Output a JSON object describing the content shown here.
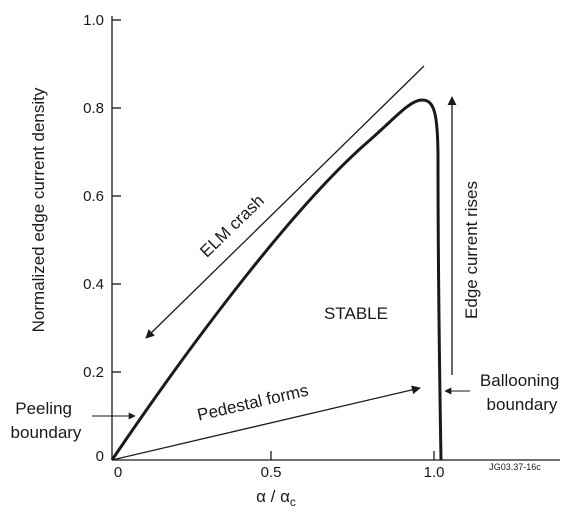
{
  "figure": {
    "y_axis_title": "Normalized edge current density",
    "x_axis_title_main": "α / α",
    "x_axis_title_sub": "c",
    "y_ticks": [
      "0",
      "0.2",
      "0.4",
      "0.6",
      "0.8",
      "1.0"
    ],
    "x_ticks": [
      "0",
      "0.5",
      "1.0"
    ],
    "region_label": "STABLE",
    "elm_crash": "ELM crash",
    "edge_current_rises": "Edge current rises",
    "pedestal_forms": "Pedestal forms",
    "peeling_line1": "Peeling",
    "peeling_line2": "boundary",
    "ballooning_line1": "Ballooning",
    "ballooning_line2": "boundary",
    "figure_code": "JG03.37-16c"
  },
  "chart_data": {
    "type": "line",
    "xlabel": "α / αc",
    "ylabel": "Normalized edge current density",
    "xlim": [
      0,
      1.35
    ],
    "ylim": [
      0,
      1.0
    ],
    "x_ticks": [
      0,
      0.5,
      1.0
    ],
    "y_ticks": [
      0,
      0.2,
      0.4,
      0.6,
      0.8,
      1.0
    ],
    "series": [
      {
        "x": [
          0,
          0.1,
          0.2,
          0.3,
          0.4,
          0.5,
          0.6,
          0.7,
          0.8,
          0.85,
          0.9,
          0.93,
          0.96,
          0.98,
          0.99,
          1.0,
          1.01,
          1.02
        ],
        "y": [
          0,
          0.11,
          0.21,
          0.31,
          0.4,
          0.48,
          0.56,
          0.64,
          0.72,
          0.76,
          0.8,
          0.815,
          0.81,
          0.78,
          0.7,
          0.5,
          0.2,
          0
        ]
      }
    ]
  }
}
